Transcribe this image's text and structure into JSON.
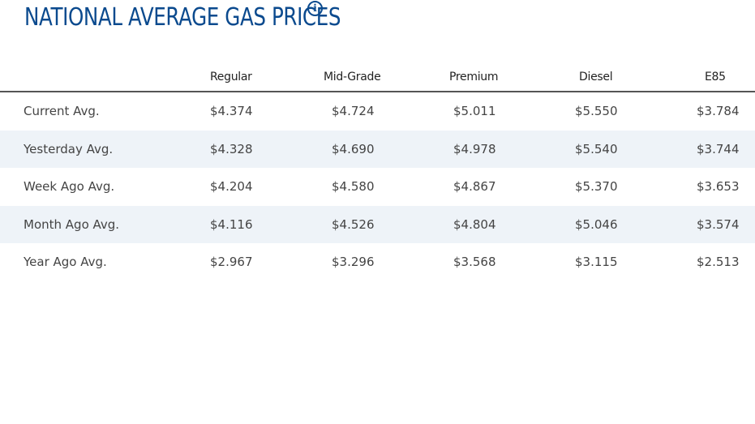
{
  "header": {
    "title": "NATIONAL AVERAGE GAS PRICES",
    "info_icon": "info-icon"
  },
  "table": {
    "columns": [
      "Regular",
      "Mid-Grade",
      "Premium",
      "Diesel",
      "E85"
    ],
    "rows": [
      {
        "label": "Current Avg.",
        "values": [
          "$4.374",
          "$4.724",
          "$5.011",
          "$5.550",
          "$3.784"
        ]
      },
      {
        "label": "Yesterday Avg.",
        "values": [
          "$4.328",
          "$4.690",
          "$4.978",
          "$5.540",
          "$3.744"
        ]
      },
      {
        "label": "Week Ago Avg.",
        "values": [
          "$4.204",
          "$4.580",
          "$4.867",
          "$5.370",
          "$3.653"
        ]
      },
      {
        "label": "Month Ago Avg.",
        "values": [
          "$4.116",
          "$4.526",
          "$4.804",
          "$5.046",
          "$3.574"
        ]
      },
      {
        "label": "Year Ago Avg.",
        "values": [
          "$2.967",
          "$3.296",
          "$3.568",
          "$3.115",
          "$2.513"
        ]
      }
    ]
  },
  "colors": {
    "title": "#0b4a8e",
    "stripe": "#eef3f8",
    "text": "#444444"
  }
}
